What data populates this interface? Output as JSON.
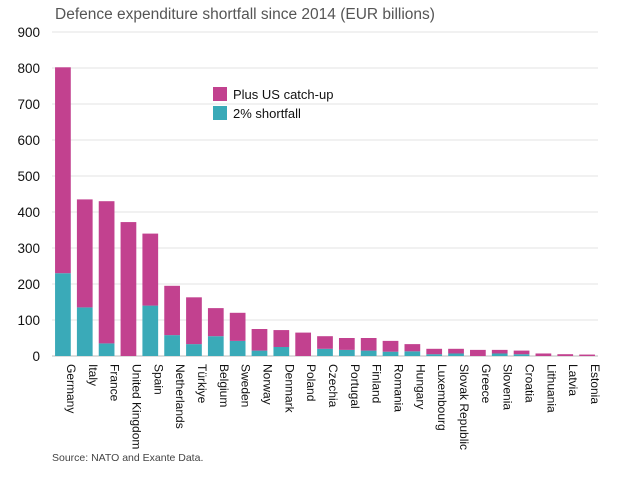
{
  "chart_data": {
    "type": "bar",
    "stacked": true,
    "title": "Defence expenditure shortfall since 2014 (EUR billions)",
    "xlabel": "",
    "ylabel": "",
    "ylim": [
      0,
      900
    ],
    "yticks": [
      0,
      100,
      200,
      300,
      400,
      500,
      600,
      700,
      800,
      900
    ],
    "grid": true,
    "legend_position": "top-center",
    "categories": [
      "Germany",
      "Italy",
      "France",
      "United Kingdom",
      "Spain",
      "Netherlands",
      "Türkiye",
      "Belgium",
      "Sweden",
      "Norway",
      "Denmark",
      "Poland",
      "Czechia",
      "Portugal",
      "Finland",
      "Romania",
      "Hungary",
      "Luxembourg",
      "Slovak Republic",
      "Greece",
      "Slovenia",
      "Croatia",
      "Lithuania",
      "Latvia",
      "Estonia"
    ],
    "series": [
      {
        "name": "2% shortfall",
        "color": "#3aaab8",
        "values": [
          230,
          135,
          35,
          0,
          140,
          58,
          33,
          55,
          42,
          15,
          25,
          0,
          20,
          17,
          15,
          12,
          13,
          5,
          7,
          0,
          7,
          5,
          0,
          0,
          0
        ]
      },
      {
        "name": "Plus US catch-up",
        "color": "#c2418f",
        "values": [
          572,
          300,
          395,
          372,
          200,
          137,
          130,
          78,
          78,
          60,
          47,
          65,
          35,
          33,
          35,
          30,
          20,
          15,
          13,
          17,
          10,
          10,
          7,
          5,
          4
        ]
      }
    ],
    "source": "Source: NATO and Exante Data."
  }
}
